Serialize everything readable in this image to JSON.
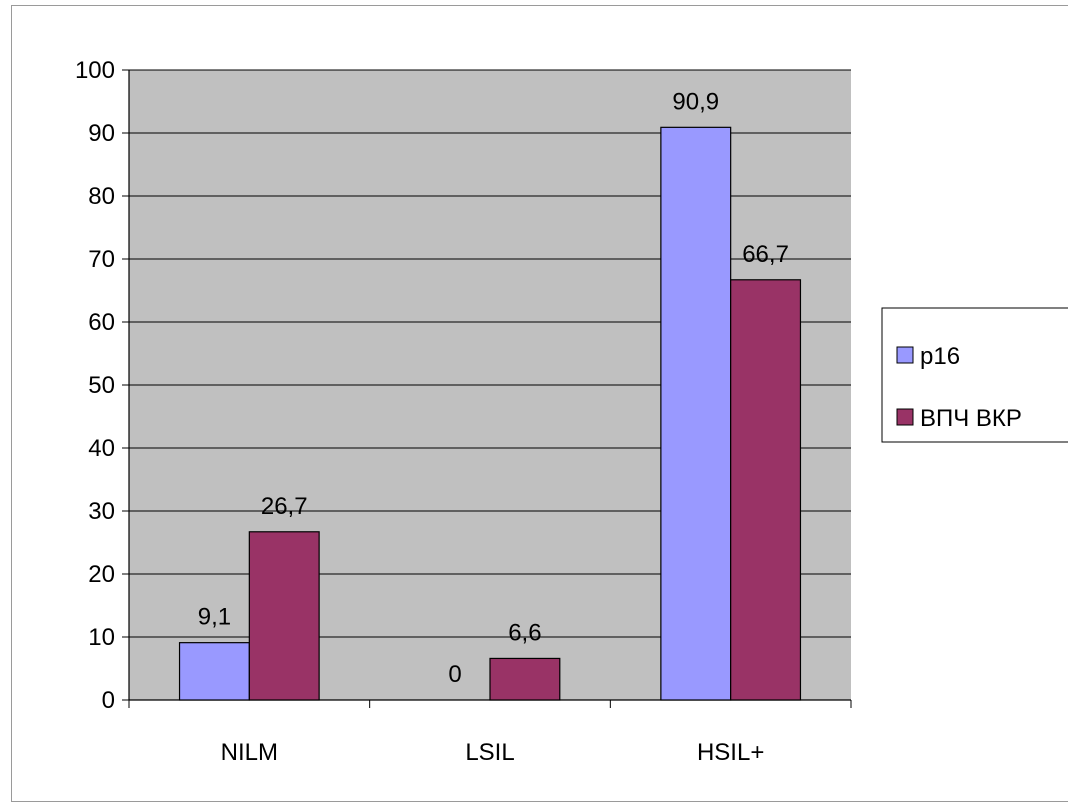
{
  "chart_data": {
    "type": "bar",
    "categories": [
      "NILM",
      "LSIL",
      "HSIL+"
    ],
    "series": [
      {
        "name": "p16",
        "values": [
          9.1,
          0,
          90.9
        ],
        "labels": [
          "9,1",
          "0",
          "90,9"
        ]
      },
      {
        "name": "ВПЧ ВКР",
        "values": [
          26.7,
          6.6,
          66.7
        ],
        "labels": [
          "26,7",
          "6,6",
          "66,7"
        ]
      }
    ],
    "ylim": [
      0,
      100
    ],
    "yticks": [
      0,
      10,
      20,
      30,
      40,
      50,
      60,
      70,
      80,
      90,
      100
    ],
    "grid": true,
    "legend": "right",
    "colors": {
      "plot_background": "#c0c0c0",
      "grid": "#000000",
      "p16": "#9999ff",
      "ВПЧ ВКР": "#993366"
    }
  }
}
